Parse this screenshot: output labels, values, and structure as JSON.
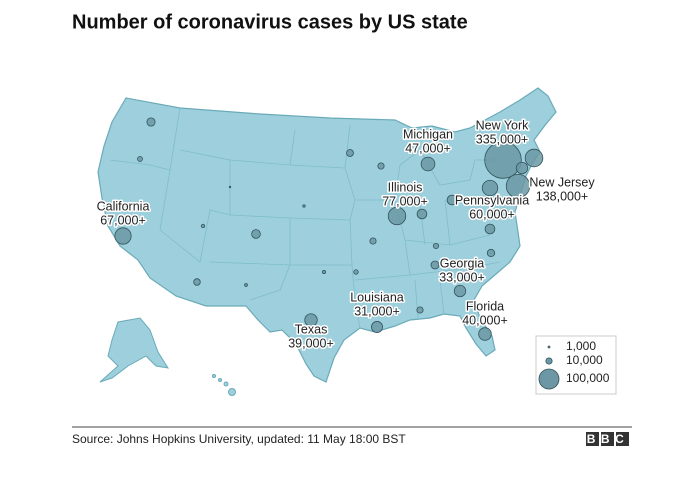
{
  "chart_data": {
    "type": "bubble-map",
    "title": "Number of coronavirus cases by US state",
    "labeled": {
      "names": [
        "New York",
        "New Jersey",
        "Pennsylvania",
        "Michigan",
        "Illinois",
        "California",
        "Georgia",
        "Florida",
        "Louisiana",
        "Texas"
      ],
      "values": [
        335000,
        138000,
        60000,
        47000,
        77000,
        67000,
        33000,
        40000,
        31000,
        39000
      ],
      "value_labels": [
        "335,000+",
        "138,000+",
        "60,000+",
        "47,000+",
        "77,000+",
        "67,000+",
        "33,000+",
        "40,000+",
        "31,000+",
        "39,000+"
      ]
    },
    "unlabeled_values": [
      17000,
      78000,
      33000,
      24000,
      24000,
      24000,
      19000,
      12000,
      10000,
      11000,
      16000,
      10000,
      10000,
      14000,
      15000,
      7000,
      5000,
      2500,
      3000,
      1500,
      2000,
      6000,
      400
    ],
    "color": "#6b98a4",
    "size_ticks": [
      {
        "value": 1000,
        "label": "1,000"
      },
      {
        "value": 10000,
        "label": "10,000"
      },
      {
        "value": 100000,
        "label": "100,000"
      }
    ],
    "source": "Source: Johns Hopkins University, updated: 11 May 18:00 BST",
    "logo": "BBC"
  }
}
